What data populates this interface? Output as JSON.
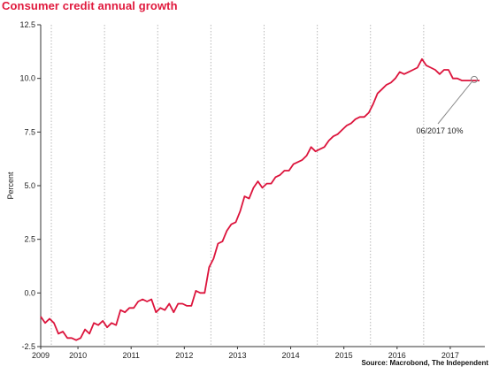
{
  "chart_data": {
    "type": "line",
    "title": "Consumer credit annual growth",
    "ylabel": "Percent",
    "xlabel": "",
    "ylim": [
      -2.5,
      12.5
    ],
    "yticks": [
      "12.5",
      "10.0",
      "7.5",
      "5.0",
      "2.5",
      "0.0",
      "-2.5"
    ],
    "ytick_values": [
      12.5,
      10.0,
      7.5,
      5.0,
      2.5,
      0.0,
      -2.5
    ],
    "xticks": [
      "2009",
      "2010",
      "2011",
      "2012",
      "2013",
      "2014",
      "2015",
      "2016",
      "2017"
    ],
    "xtick_values": [
      2009.0,
      2009.7,
      2010.7,
      2011.7,
      2012.7,
      2013.7,
      2014.7,
      2015.7,
      2016.7
    ],
    "xlim": [
      2009.0,
      2017.35
    ],
    "year_dividers": [
      2009.2,
      2010.2,
      2011.2,
      2012.2,
      2013.2,
      2014.2,
      2015.2,
      2016.2
    ],
    "grid": "vertical dotted",
    "line_color": "#dc143c",
    "series": [
      {
        "x": [
          2009.0,
          2009.083,
          2009.167,
          2009.25,
          2009.333,
          2009.417,
          2009.5,
          2009.583,
          2009.667,
          2009.75,
          2009.833,
          2009.917,
          2010.0,
          2010.083,
          2010.167,
          2010.25,
          2010.333,
          2010.417,
          2010.5,
          2010.583,
          2010.667,
          2010.75,
          2010.833,
          2010.917,
          2011.0,
          2011.083,
          2011.167,
          2011.25,
          2011.333,
          2011.417,
          2011.5,
          2011.583,
          2011.667,
          2011.75,
          2011.833,
          2011.917,
          2012.0,
          2012.083,
          2012.167,
          2012.25,
          2012.333,
          2012.417,
          2012.5,
          2012.583,
          2012.667,
          2012.75,
          2012.833,
          2012.917,
          2013.0,
          2013.083,
          2013.167,
          2013.25,
          2013.333,
          2013.417,
          2013.5,
          2013.583,
          2013.667,
          2013.75,
          2013.833,
          2013.917,
          2014.0,
          2014.083,
          2014.167,
          2014.25,
          2014.333,
          2014.417,
          2014.5,
          2014.583,
          2014.667,
          2014.75,
          2014.833,
          2014.917,
          2015.0,
          2015.083,
          2015.167,
          2015.25,
          2015.333,
          2015.417,
          2015.5,
          2015.583,
          2015.667,
          2015.75,
          2015.833,
          2015.917,
          2016.0,
          2016.083,
          2016.167,
          2016.25,
          2016.333,
          2016.417,
          2016.5,
          2016.583,
          2016.667,
          2016.75,
          2016.833,
          2016.917,
          2017.0,
          2017.083,
          2017.167,
          2017.25
        ],
        "values": [
          -1.1,
          -1.4,
          -1.2,
          -1.4,
          -1.9,
          -1.8,
          -2.1,
          -2.1,
          -2.2,
          -2.1,
          -1.7,
          -1.9,
          -1.4,
          -1.5,
          -1.3,
          -1.6,
          -1.4,
          -1.5,
          -0.8,
          -0.9,
          -0.7,
          -0.7,
          -0.4,
          -0.3,
          -0.4,
          -0.3,
          -0.9,
          -0.7,
          -0.8,
          -0.5,
          -0.9,
          -0.5,
          -0.5,
          -0.6,
          -0.6,
          0.1,
          0.0,
          0.0,
          1.2,
          1.6,
          2.3,
          2.4,
          2.9,
          3.2,
          3.3,
          3.8,
          4.5,
          4.4,
          4.9,
          5.2,
          4.9,
          5.1,
          5.1,
          5.4,
          5.5,
          5.7,
          5.7,
          6.0,
          6.1,
          6.2,
          6.4,
          6.8,
          6.6,
          6.7,
          6.8,
          7.1,
          7.3,
          7.4,
          7.6,
          7.8,
          7.9,
          8.1,
          8.2,
          8.2,
          8.4,
          8.8,
          9.3,
          9.5,
          9.7,
          9.8,
          10.0,
          10.3,
          10.2,
          10.3,
          10.4,
          10.5,
          10.9,
          10.6,
          10.5,
          10.4,
          10.2,
          10.4,
          10.4,
          10.0,
          10.0,
          9.9,
          9.9,
          9.9,
          9.9,
          9.9
        ]
      }
    ],
    "annotation": {
      "text": "06/2017 10%",
      "x": 2017.15,
      "y": 9.95
    },
    "source": "Source: Macrobond, The Independent"
  }
}
